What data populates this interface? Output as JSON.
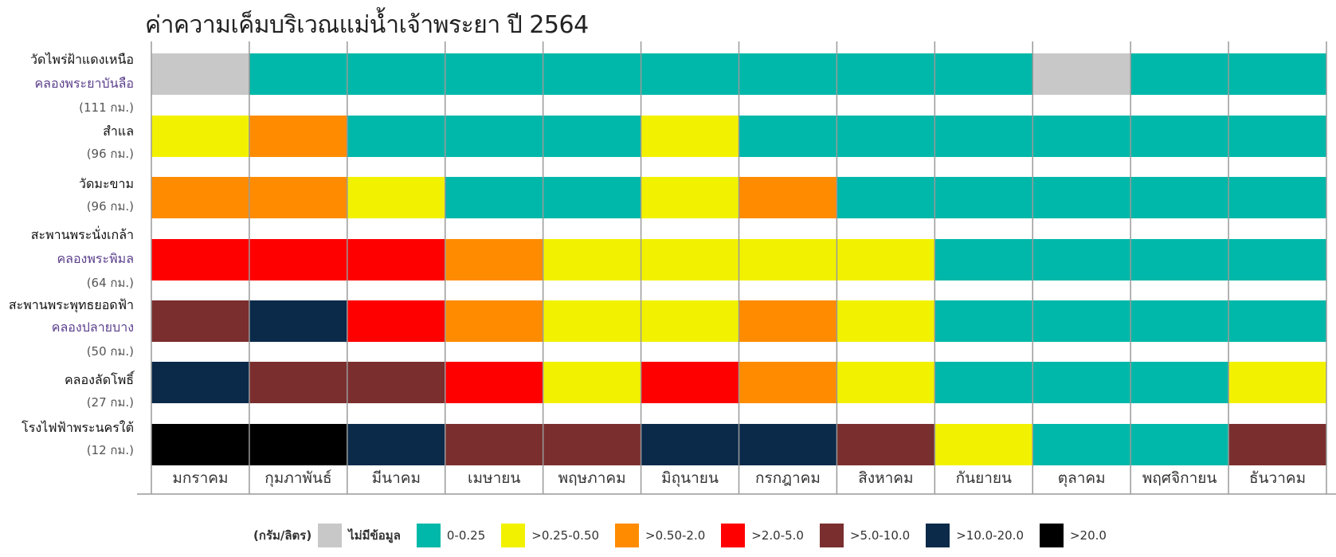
{
  "title": "ค่าความเค็มบริเวณแม่น้ำเจ้าพระยา ปี 2564",
  "legend": {
    "unit": "(กรัม/ลิตร)",
    "items": [
      {
        "label": "ไม่มีข้อมูล",
        "color": "#c8c8c8"
      },
      {
        "label": "0-0.25",
        "color": "#00b8a9"
      },
      {
        "label": ">0.25-0.50",
        "color": "#f2f200"
      },
      {
        "label": ">0.50-2.0",
        "color": "#ff8c00"
      },
      {
        "label": ">2.0-5.0",
        "color": "#ff0000"
      },
      {
        "label": ">5.0-10.0",
        "color": "#7b2e2e"
      },
      {
        "label": ">10.0-20.0",
        "color": "#0b2a4a"
      },
      {
        "label": ">20.0",
        "color": "#000000"
      }
    ]
  },
  "chart_data": {
    "type": "heatmap",
    "title": "ค่าความเค็มบริเวณแม่น้ำเจ้าพระยา ปี 2564",
    "x_categories": [
      "มกราคม",
      "กุมภาพันธ์",
      "มีนาคม",
      "เมษายน",
      "พฤษภาคม",
      "มิถุนายน",
      "กรกฎาคม",
      "สิงหาคม",
      "กันยายน",
      "ตุลาคม",
      "พฤศจิกายน",
      "ธันวาคม"
    ],
    "categories_key": [
      "nodata",
      "0-0.25",
      ">0.25-0.50",
      ">0.50-2.0",
      ">2.0-5.0",
      ">5.0-10.0",
      ">10.0-20.0",
      ">20.0"
    ],
    "colors": {
      "nodata": "#c8c8c8",
      "0-0.25": "#00b8a9",
      ">0.25-0.50": "#f2f200",
      ">0.50-2.0": "#ff8c00",
      ">2.0-5.0": "#ff0000",
      ">5.0-10.0": "#7b2e2e",
      ">10.0-20.0": "#0b2a4a",
      ">20.0": "#000000"
    },
    "stations": [
      {
        "name": "วัดไพร่ฝ้าแดงเหนือ",
        "subname": "คลองพระยาบันลือ",
        "distance": "(111 กม.)",
        "monthly_class": [
          "nodata",
          "0-0.25",
          "0-0.25",
          "0-0.25",
          "0-0.25",
          "0-0.25",
          "0-0.25",
          "0-0.25",
          "0-0.25",
          "nodata",
          "0-0.25",
          "0-0.25"
        ]
      },
      {
        "name": "สำแล",
        "subname": "",
        "distance": "(96 กม.)",
        "monthly_class": [
          ">0.25-0.50",
          ">0.50-2.0",
          "0-0.25",
          "0-0.25",
          "0-0.25",
          ">0.25-0.50",
          "0-0.25",
          "0-0.25",
          "0-0.25",
          "0-0.25",
          "0-0.25",
          "0-0.25"
        ]
      },
      {
        "name": "วัดมะขาม",
        "subname": "",
        "distance": "(96 กม.)",
        "monthly_class": [
          ">0.50-2.0",
          ">0.50-2.0",
          ">0.25-0.50",
          "0-0.25",
          "0-0.25",
          ">0.25-0.50",
          ">0.50-2.0",
          "0-0.25",
          "0-0.25",
          "0-0.25",
          "0-0.25",
          "0-0.25"
        ]
      },
      {
        "name": "สะพานพระนั่งเกล้า",
        "subname": "คลองพระพิมล",
        "distance": "(64 กม.)",
        "monthly_class": [
          ">2.0-5.0",
          ">2.0-5.0",
          ">2.0-5.0",
          ">0.50-2.0",
          ">0.25-0.50",
          ">0.25-0.50",
          ">0.25-0.50",
          ">0.25-0.50",
          "0-0.25",
          "0-0.25",
          "0-0.25",
          "0-0.25"
        ]
      },
      {
        "name": "สะพานพระพุทธยอดฟ้า",
        "subname": "คลองปลายบาง",
        "distance": "(50 กม.)",
        "monthly_class": [
          ">5.0-10.0",
          ">10.0-20.0",
          ">2.0-5.0",
          ">0.50-2.0",
          ">0.25-0.50",
          ">0.25-0.50",
          ">0.50-2.0",
          ">0.25-0.50",
          "0-0.25",
          "0-0.25",
          "0-0.25",
          "0-0.25"
        ]
      },
      {
        "name": "คลองลัดโพธิ์",
        "subname": "",
        "distance": "(27 กม.)",
        "monthly_class": [
          ">10.0-20.0",
          ">5.0-10.0",
          ">5.0-10.0",
          ">2.0-5.0",
          ">0.25-0.50",
          ">2.0-5.0",
          ">0.50-2.0",
          ">0.25-0.50",
          "0-0.25",
          "0-0.25",
          "0-0.25",
          ">0.25-0.50"
        ]
      },
      {
        "name": "โรงไฟฟ้าพระนครใต้",
        "subname": "",
        "distance": "(12 กม.)",
        "monthly_class": [
          ">20.0",
          ">20.0",
          ">10.0-20.0",
          ">5.0-10.0",
          ">5.0-10.0",
          ">10.0-20.0",
          ">10.0-20.0",
          ">5.0-10.0",
          ">0.25-0.50",
          "0-0.25",
          "0-0.25",
          ">5.0-10.0"
        ]
      }
    ]
  }
}
